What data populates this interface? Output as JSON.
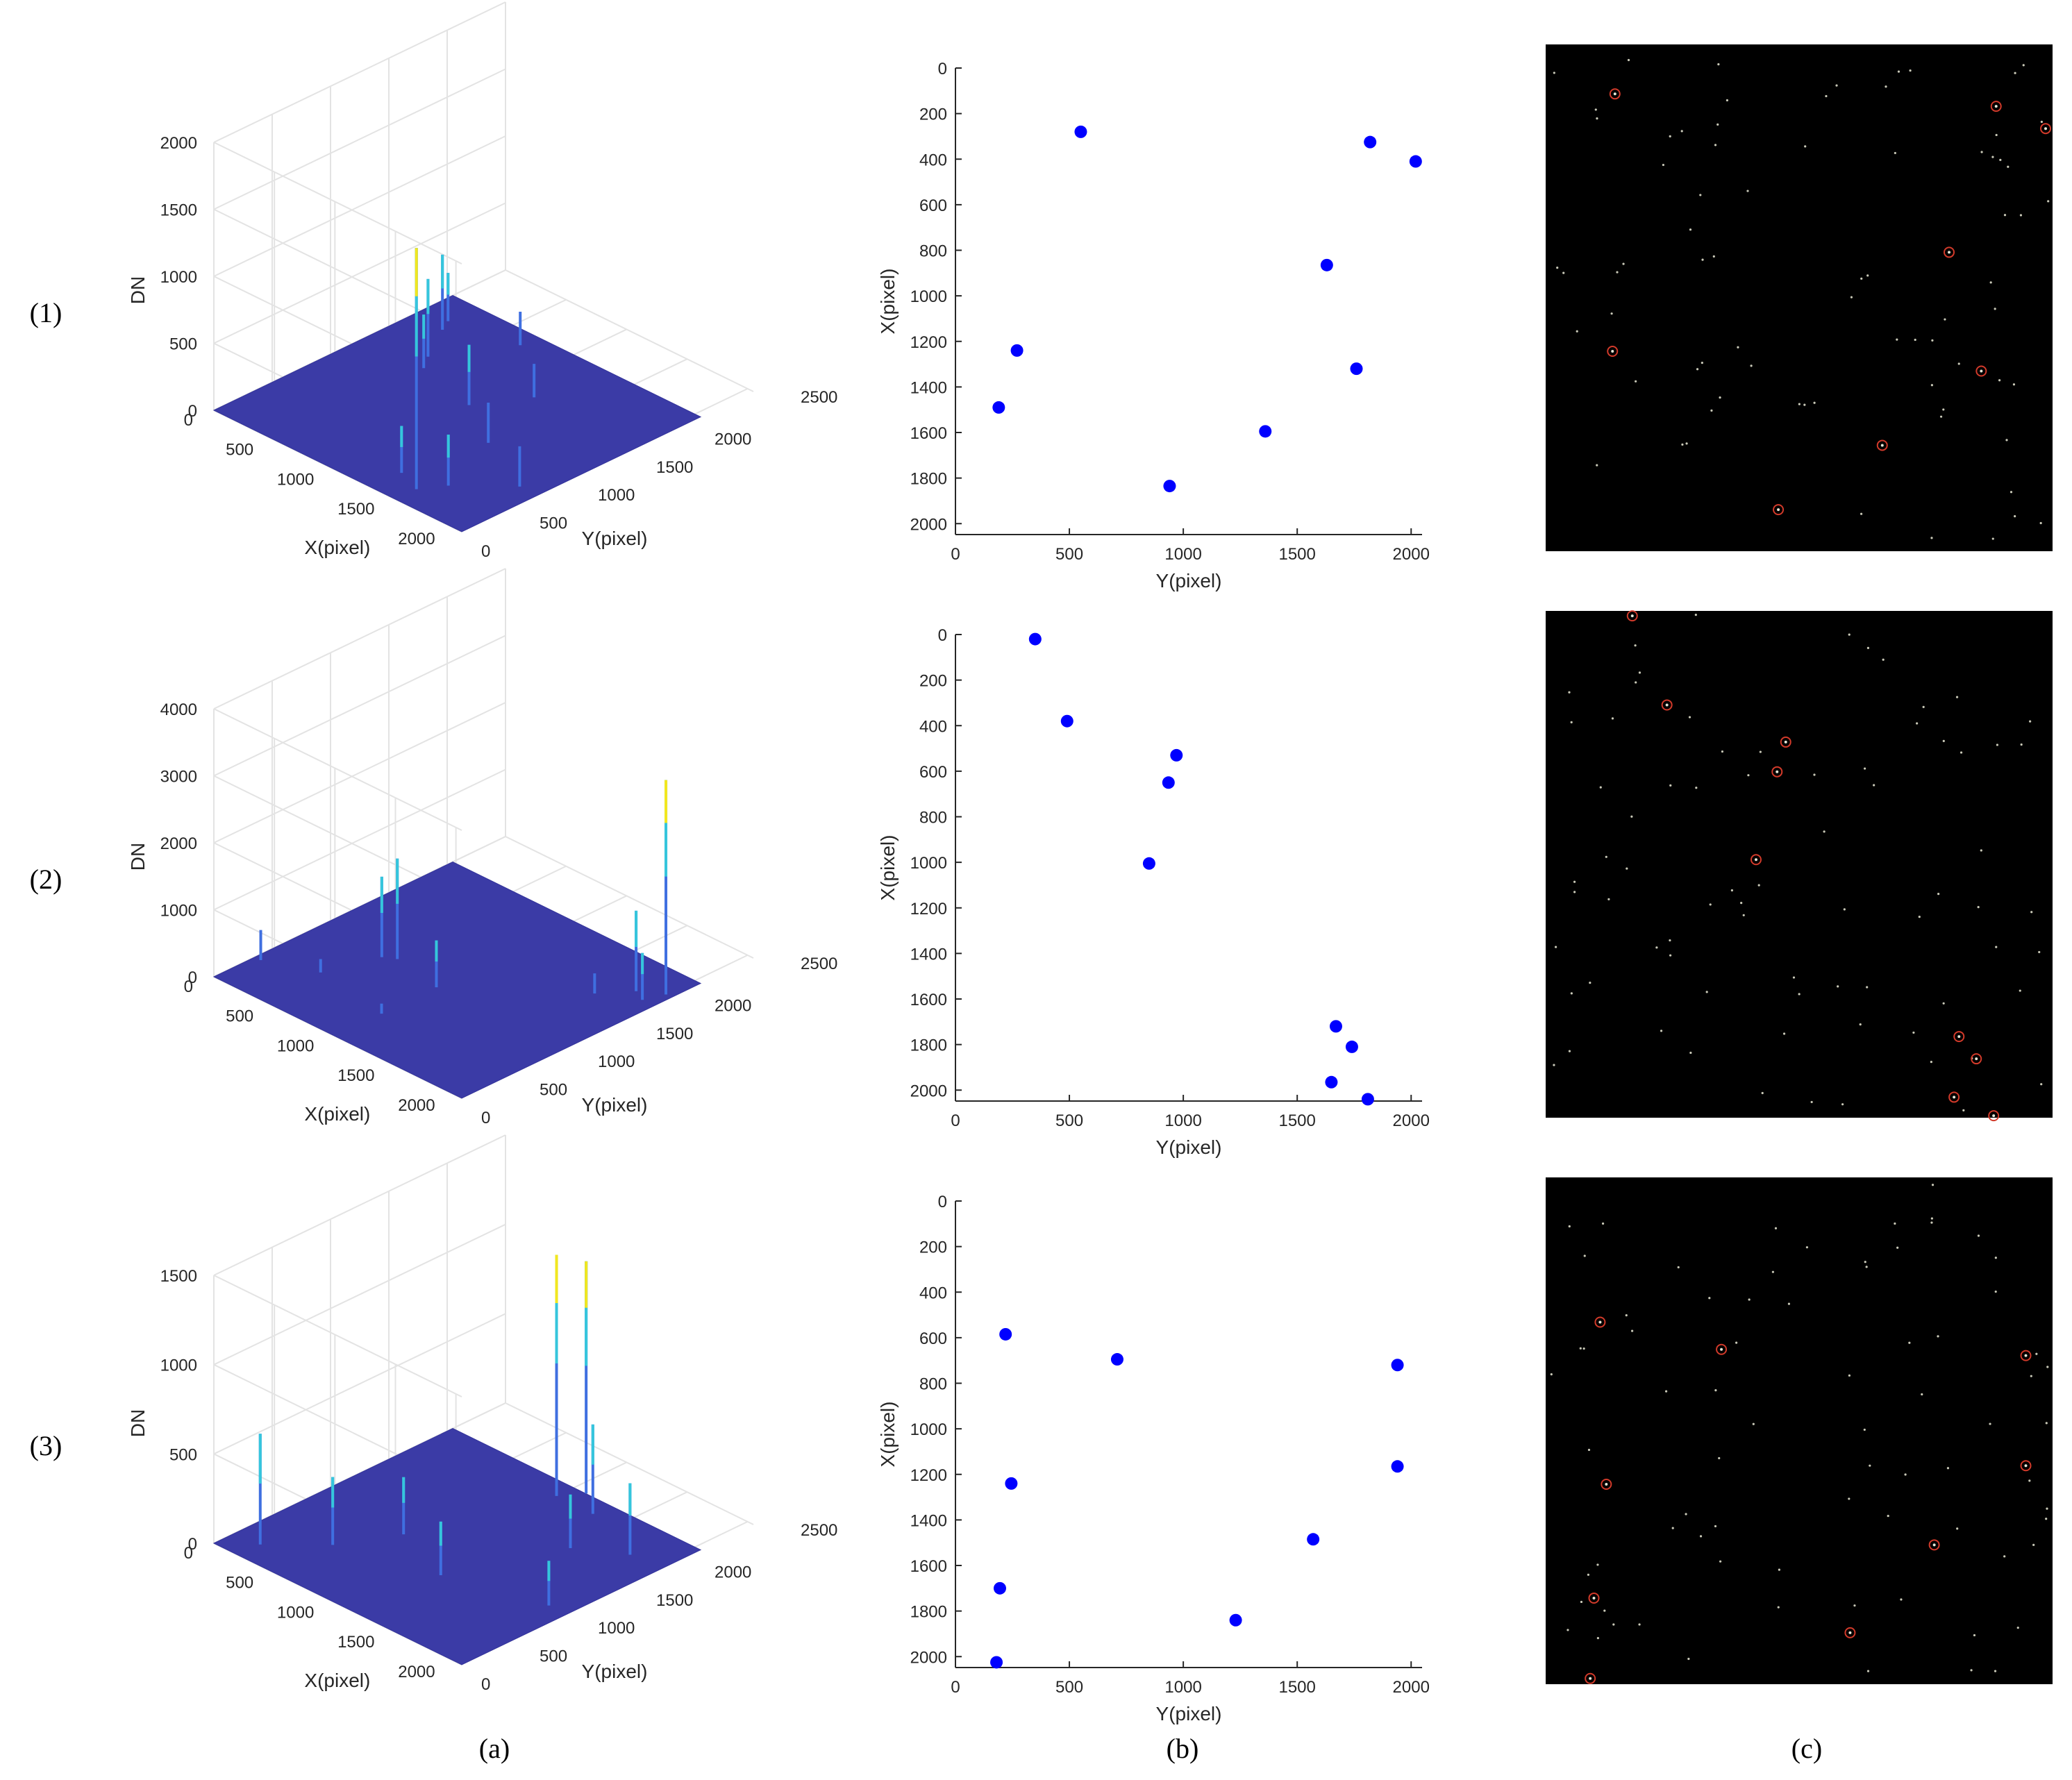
{
  "row_labels": [
    "(1)",
    "(2)",
    "(3)"
  ],
  "column_labels": [
    "(a)",
    "(b)",
    "(c)"
  ],
  "colors": {
    "surface": "#3b3ba6",
    "peak_low": "#3f6fe0",
    "peak_mid": "#35c6dc",
    "peak_high": "#f2e71f",
    "marker": "#0000ff",
    "star_field": "#000000",
    "detection_circle": "#d23a2a"
  },
  "chart_data": [
    {
      "panel": "(1)(a)",
      "type": "surface3d",
      "xlabel": "X(pixel)",
      "ylabel": "Y(pixel)",
      "zlabel": "DN",
      "x_ticks": [
        0,
        500,
        1000,
        1500,
        2000
      ],
      "y_ticks": [
        0,
        500,
        1000,
        1500,
        2000,
        2500
      ],
      "z_ticks": [
        0,
        500,
        1000,
        1500,
        2000
      ],
      "xlim": [
        0,
        2048
      ],
      "ylim": [
        0,
        2500
      ],
      "zlim": [
        0,
        2000
      ],
      "grid": true,
      "peaks": [
        {
          "x": 1500,
          "y": 180,
          "dn": 1800
        },
        {
          "x": 250,
          "y": 1700,
          "dn": 560
        },
        {
          "x": 420,
          "y": 1400,
          "dn": 580
        },
        {
          "x": 200,
          "y": 1800,
          "dn": 360
        },
        {
          "x": 500,
          "y": 1280,
          "dn": 400
        },
        {
          "x": 1300,
          "y": 260,
          "dn": 350
        },
        {
          "x": 1000,
          "y": 1150,
          "dn": 450
        },
        {
          "x": 1600,
          "y": 350,
          "dn": 380
        },
        {
          "x": 1900,
          "y": 650,
          "dn": 300
        },
        {
          "x": 1400,
          "y": 900,
          "dn": 300
        },
        {
          "x": 1200,
          "y": 1500,
          "dn": 250
        },
        {
          "x": 700,
          "y": 1900,
          "dn": 250
        }
      ]
    },
    {
      "panel": "(1)(b)",
      "type": "scatter",
      "xlabel": "Y(pixel)",
      "ylabel": "X(pixel)",
      "x_ticks": [
        0,
        500,
        1000,
        1500,
        2000
      ],
      "y_ticks": [
        0,
        200,
        400,
        600,
        800,
        1000,
        1200,
        1400,
        1600,
        1800,
        2000
      ],
      "xlim": [
        0,
        2048
      ],
      "ylim": [
        0,
        2048
      ],
      "y_reversed": true,
      "points": [
        {
          "x": 550,
          "y": 280
        },
        {
          "x": 1820,
          "y": 325
        },
        {
          "x": 2020,
          "y": 410
        },
        {
          "x": 1630,
          "y": 865
        },
        {
          "x": 270,
          "y": 1240
        },
        {
          "x": 1760,
          "y": 1320
        },
        {
          "x": 190,
          "y": 1490
        },
        {
          "x": 1360,
          "y": 1595
        },
        {
          "x": 940,
          "y": 1835
        }
      ]
    },
    {
      "panel": "(1)(c)",
      "type": "star_image",
      "detections": [
        {
          "x": 280,
          "y": 200
        },
        {
          "x": 1820,
          "y": 250
        },
        {
          "x": 2020,
          "y": 340
        },
        {
          "x": 1630,
          "y": 840
        },
        {
          "x": 270,
          "y": 1240
        },
        {
          "x": 1760,
          "y": 1320
        },
        {
          "x": 1360,
          "y": 1620
        },
        {
          "x": 940,
          "y": 1880
        }
      ]
    },
    {
      "panel": "(2)(a)",
      "type": "surface3d",
      "xlabel": "X(pixel)",
      "ylabel": "Y(pixel)",
      "zlabel": "DN",
      "x_ticks": [
        0,
        500,
        1000,
        1500,
        2000
      ],
      "y_ticks": [
        0,
        500,
        1000,
        1500,
        2000,
        2500
      ],
      "z_ticks": [
        0,
        1000,
        2000,
        3000,
        4000
      ],
      "xlim": [
        0,
        2048
      ],
      "ylim": [
        0,
        2500
      ],
      "zlim": [
        0,
        4000
      ],
      "grid": true,
      "peaks": [
        {
          "x": 2000,
          "y": 1800,
          "dn": 3200
        },
        {
          "x": 1850,
          "y": 1700,
          "dn": 1200
        },
        {
          "x": 1950,
          "y": 1650,
          "dn": 700
        },
        {
          "x": 600,
          "y": 950,
          "dn": 1500
        },
        {
          "x": 520,
          "y": 900,
          "dn": 1200
        },
        {
          "x": 1000,
          "y": 870,
          "dn": 700
        },
        {
          "x": 50,
          "y": 350,
          "dn": 450
        },
        {
          "x": 400,
          "y": 500,
          "dn": 200
        },
        {
          "x": 1700,
          "y": 1500,
          "dn": 300
        },
        {
          "x": 1000,
          "y": 400,
          "dn": 150
        }
      ]
    },
    {
      "panel": "(2)(b)",
      "type": "scatter",
      "xlabel": "Y(pixel)",
      "ylabel": "X(pixel)",
      "x_ticks": [
        0,
        500,
        1000,
        1500,
        2000
      ],
      "y_ticks": [
        0,
        200,
        400,
        600,
        800,
        1000,
        1200,
        1400,
        1600,
        1800,
        2000
      ],
      "xlim": [
        0,
        2048
      ],
      "ylim": [
        0,
        2048
      ],
      "y_reversed": true,
      "points": [
        {
          "x": 350,
          "y": 20
        },
        {
          "x": 490,
          "y": 380
        },
        {
          "x": 970,
          "y": 530
        },
        {
          "x": 935,
          "y": 650
        },
        {
          "x": 850,
          "y": 1005
        },
        {
          "x": 1670,
          "y": 1720
        },
        {
          "x": 1740,
          "y": 1810
        },
        {
          "x": 1650,
          "y": 1965
        },
        {
          "x": 1810,
          "y": 2040
        }
      ]
    },
    {
      "panel": "(2)(c)",
      "type": "star_image",
      "detections": [
        {
          "x": 350,
          "y": 20
        },
        {
          "x": 490,
          "y": 380
        },
        {
          "x": 970,
          "y": 530
        },
        {
          "x": 935,
          "y": 650
        },
        {
          "x": 850,
          "y": 1005
        },
        {
          "x": 1670,
          "y": 1720
        },
        {
          "x": 1740,
          "y": 1810
        },
        {
          "x": 1650,
          "y": 1965
        },
        {
          "x": 1810,
          "y": 2040
        }
      ]
    },
    {
      "panel": "(3)(a)",
      "type": "surface3d",
      "xlabel": "X(pixel)",
      "ylabel": "Y(pixel)",
      "zlabel": "DN",
      "x_ticks": [
        0,
        500,
        1000,
        1500,
        2000
      ],
      "y_ticks": [
        0,
        500,
        1000,
        1500,
        2000,
        2500
      ],
      "z_ticks": [
        0,
        500,
        1000,
        1500
      ],
      "xlim": [
        0,
        2048
      ],
      "ylim": [
        0,
        2500
      ],
      "zlim": [
        0,
        1500
      ],
      "grid": true,
      "peaks": [
        {
          "x": 1000,
          "y": 1900,
          "dn": 1350
        },
        {
          "x": 1100,
          "y": 2050,
          "dn": 1300
        },
        {
          "x": 1300,
          "y": 1900,
          "dn": 500
        },
        {
          "x": 200,
          "y": 190,
          "dn": 620
        },
        {
          "x": 500,
          "y": 500,
          "dn": 380
        },
        {
          "x": 700,
          "y": 900,
          "dn": 320
        },
        {
          "x": 1800,
          "y": 1700,
          "dn": 400
        },
        {
          "x": 1200,
          "y": 700,
          "dn": 300
        },
        {
          "x": 1500,
          "y": 1500,
          "dn": 300
        },
        {
          "x": 1900,
          "y": 900,
          "dn": 250
        }
      ]
    },
    {
      "panel": "(3)(b)",
      "type": "scatter",
      "xlabel": "Y(pixel)",
      "ylabel": "X(pixel)",
      "x_ticks": [
        0,
        500,
        1000,
        1500,
        2000
      ],
      "y_ticks": [
        0,
        200,
        400,
        600,
        800,
        1000,
        1200,
        1400,
        1600,
        1800,
        2000
      ],
      "xlim": [
        0,
        2048
      ],
      "ylim": [
        0,
        2048
      ],
      "y_reversed": true,
      "points": [
        {
          "x": 220,
          "y": 585
        },
        {
          "x": 710,
          "y": 695
        },
        {
          "x": 1940,
          "y": 720
        },
        {
          "x": 1940,
          "y": 1165
        },
        {
          "x": 245,
          "y": 1240
        },
        {
          "x": 1570,
          "y": 1485
        },
        {
          "x": 195,
          "y": 1700
        },
        {
          "x": 1230,
          "y": 1840
        },
        {
          "x": 180,
          "y": 2025
        }
      ]
    },
    {
      "panel": "(3)(c)",
      "type": "star_image",
      "detections": [
        {
          "x": 220,
          "y": 585
        },
        {
          "x": 710,
          "y": 695
        },
        {
          "x": 1940,
          "y": 720
        },
        {
          "x": 1940,
          "y": 1165
        },
        {
          "x": 245,
          "y": 1240
        },
        {
          "x": 1570,
          "y": 1485
        },
        {
          "x": 195,
          "y": 1700
        },
        {
          "x": 1230,
          "y": 1840
        },
        {
          "x": 180,
          "y": 2025
        }
      ]
    }
  ]
}
